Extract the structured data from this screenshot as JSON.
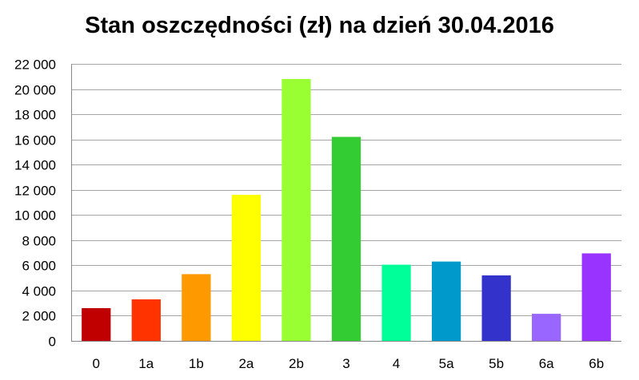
{
  "chart_data": {
    "type": "bar",
    "title": "Stan oszczędności (zł) na dzień 30.04.2016",
    "xlabel": "",
    "ylabel": "",
    "categories": [
      "0",
      "1a",
      "1b",
      "2a",
      "2b",
      "3",
      "4",
      "5a",
      "5b",
      "6a",
      "6b"
    ],
    "values": [
      2600,
      3300,
      5300,
      11600,
      20800,
      16200,
      6050,
      6300,
      5200,
      2150,
      6950
    ],
    "colors": [
      "#c00000",
      "#ff3300",
      "#ff9900",
      "#ffff00",
      "#99ff33",
      "#33cc33",
      "#00ff99",
      "#0099cc",
      "#3333cc",
      "#9966ff",
      "#9933ff"
    ],
    "ylim": [
      0,
      22000
    ],
    "yticks": [
      0,
      2000,
      4000,
      6000,
      8000,
      10000,
      12000,
      14000,
      16000,
      18000,
      20000,
      22000
    ],
    "ytick_labels": [
      "0",
      "2 000",
      "4 000",
      "6 000",
      "8 000",
      "10 000",
      "12 000",
      "14 000",
      "16 000",
      "18 000",
      "20 000",
      "22 000"
    ],
    "grid": true,
    "legend": "none"
  }
}
